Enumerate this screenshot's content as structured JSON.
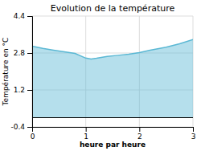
{
  "chart_data": {
    "type": "area",
    "title": "Evolution de la température",
    "xlabel": "heure par heure",
    "ylabel": "Température en °C",
    "x": [
      0,
      0.2,
      0.4,
      0.6,
      0.8,
      1.0,
      1.1,
      1.2,
      1.4,
      1.6,
      1.8,
      2.0,
      2.2,
      2.5,
      2.75,
      3.0
    ],
    "values": [
      3.1,
      3.0,
      2.92,
      2.85,
      2.78,
      2.58,
      2.54,
      2.57,
      2.65,
      2.7,
      2.75,
      2.82,
      2.92,
      3.05,
      3.2,
      3.38
    ],
    "color": "#5bb8d4",
    "xlim": [
      0,
      3
    ],
    "ylim": [
      -0.4,
      4.4
    ],
    "xticks": [
      0,
      1,
      2,
      3
    ],
    "yticks": [
      -0.4,
      1.2,
      2.8,
      4.4
    ],
    "grid": true
  }
}
